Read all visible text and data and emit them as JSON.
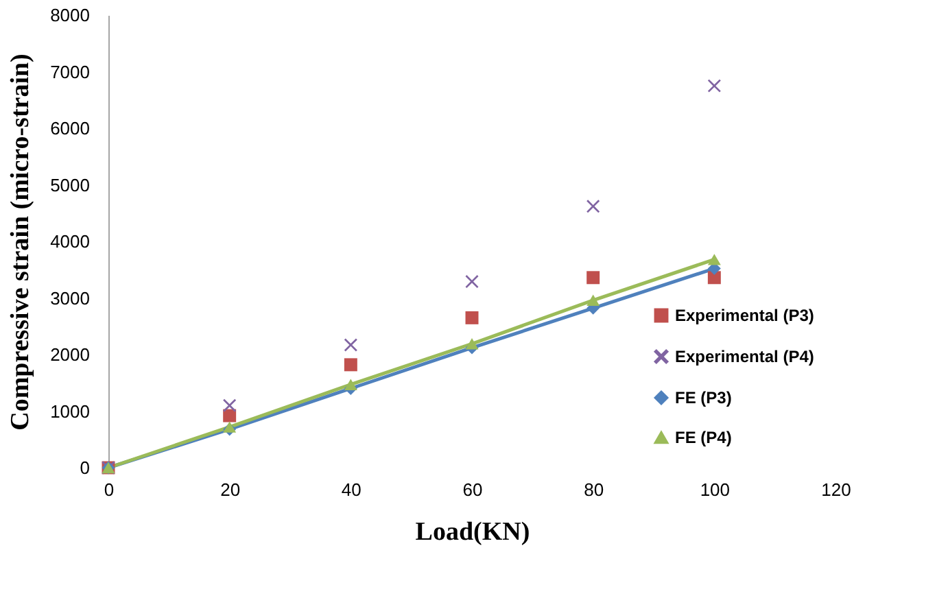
{
  "chart_data": {
    "type": "line",
    "xlabel": "Load(KN)",
    "ylabel": "Compressive strain (micro-strain)",
    "x": [
      0,
      20,
      40,
      60,
      80,
      100
    ],
    "xlim": [
      0,
      120
    ],
    "xticks": [
      0,
      20,
      40,
      60,
      80,
      100,
      120
    ],
    "ylim": [
      0,
      8000
    ],
    "yticks": [
      0,
      {
        "value": 1000,
        "label": "1000"
      },
      {
        "value": 2000,
        "label": "2000"
      },
      {
        "value": 3000,
        "label": "3000"
      },
      {
        "value": 4000,
        "label": "4000"
      },
      {
        "value": 5000,
        "label": "5000"
      },
      {
        "value": 6000,
        "label": "6000"
      },
      {
        "value": 7000,
        "label": "7000"
      },
      {
        "value": 8000,
        "label": "8000"
      }
    ],
    "grid": false,
    "legend": "bottom right",
    "series": [
      {
        "name": "Experimental (P3)",
        "type": "scatter",
        "marker": "square",
        "color": "#c0504d",
        "values": [
          0,
          920,
          1820,
          2650,
          3360,
          3360
        ]
      },
      {
        "name": "Experimental (P4)",
        "type": "scatter",
        "marker": "cross",
        "color": "#8064a2",
        "values": [
          0,
          1100,
          2170,
          3290,
          4620,
          6750
        ]
      },
      {
        "name": "FE (P3)",
        "type": "line",
        "marker": "diamond",
        "color": "#4f81bd",
        "values": [
          0,
          680,
          1400,
          2120,
          2820,
          3520
        ]
      },
      {
        "name": "FE (P4)",
        "type": "line",
        "marker": "triangle",
        "color": "#9bbb59",
        "values": [
          0,
          720,
          1470,
          2190,
          2960,
          3680
        ]
      }
    ]
  }
}
